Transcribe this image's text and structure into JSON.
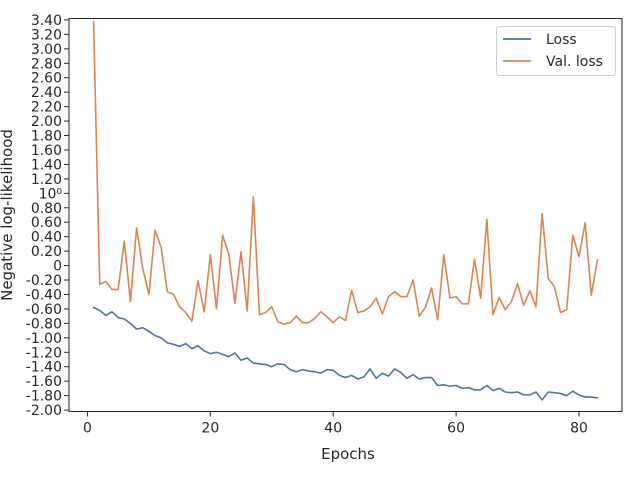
{
  "chart_data": {
    "type": "line",
    "title": "",
    "xlabel": "Epochs",
    "ylabel": "Negative log-likelihood",
    "xlim": [
      -3,
      87
    ],
    "ylim": [
      -2.02,
      3.42
    ],
    "x_ticks": [
      0,
      20,
      40,
      60,
      80
    ],
    "x_tick_labels": [
      "0",
      "20",
      "40",
      "60",
      "80"
    ],
    "y_ticks": [
      -2.0,
      -1.8,
      -1.6,
      -1.4,
      -1.2,
      -1.0,
      -0.8,
      -0.6,
      -0.4,
      -0.2,
      0,
      0.2,
      0.4,
      0.6,
      0.8,
      1.0,
      1.2,
      1.4,
      1.6,
      1.8,
      2.0,
      2.2,
      2.4,
      2.6,
      2.8,
      3.0,
      3.2,
      3.4
    ],
    "y_tick_labels": [
      "-2.00",
      "-1.80",
      "-1.60",
      "-1.40",
      "-1.20",
      "-1.00",
      "-0.80",
      "-0.60",
      "-0.40",
      "-0.20",
      "0",
      "0.20",
      "0.40",
      "0.60",
      "0.80",
      "10⁰",
      "1.20",
      "1.40",
      "1.60",
      "1.80",
      "2.00",
      "2.20",
      "2.40",
      "2.60",
      "2.80",
      "3.00",
      "3.20",
      "3.40"
    ],
    "legend": "top-right",
    "grid": false,
    "x": [
      1,
      2,
      3,
      4,
      5,
      6,
      7,
      8,
      9,
      10,
      11,
      12,
      13,
      14,
      15,
      16,
      17,
      18,
      19,
      20,
      21,
      22,
      23,
      24,
      25,
      26,
      27,
      28,
      29,
      30,
      31,
      32,
      33,
      34,
      35,
      36,
      37,
      38,
      39,
      40,
      41,
      42,
      43,
      44,
      45,
      46,
      47,
      48,
      49,
      50,
      51,
      52,
      53,
      54,
      55,
      56,
      57,
      58,
      59,
      60,
      61,
      62,
      63,
      64,
      65,
      66,
      67,
      68,
      69,
      70,
      71,
      72,
      73,
      74,
      75,
      76,
      77,
      78,
      79,
      80,
      81,
      82,
      83
    ],
    "series": [
      {
        "name": "Loss",
        "color": "#4c72b0",
        "values": [
          -0.58,
          -0.62,
          -0.69,
          -0.64,
          -0.72,
          -0.74,
          -0.8,
          -0.88,
          -0.86,
          -0.91,
          -0.97,
          -1.0,
          -1.07,
          -1.09,
          -1.12,
          -1.08,
          -1.15,
          -1.11,
          -1.18,
          -1.22,
          -1.2,
          -1.23,
          -1.26,
          -1.21,
          -1.31,
          -1.28,
          -1.35,
          -1.36,
          -1.37,
          -1.4,
          -1.36,
          -1.37,
          -1.44,
          -1.47,
          -1.44,
          -1.46,
          -1.47,
          -1.49,
          -1.44,
          -1.45,
          -1.52,
          -1.55,
          -1.52,
          -1.57,
          -1.54,
          -1.43,
          -1.56,
          -1.49,
          -1.53,
          -1.43,
          -1.48,
          -1.56,
          -1.51,
          -1.57,
          -1.55,
          -1.55,
          -1.66,
          -1.65,
          -1.67,
          -1.66,
          -1.7,
          -1.69,
          -1.72,
          -1.72,
          -1.66,
          -1.73,
          -1.7,
          -1.75,
          -1.76,
          -1.75,
          -1.79,
          -1.79,
          -1.75,
          -1.86,
          -1.75,
          -1.76,
          -1.77,
          -1.8,
          -1.74,
          -1.79,
          -1.82,
          -1.82,
          -1.83
        ]
      },
      {
        "name": "Val. loss",
        "color": "#dd8452",
        "values": [
          3.38,
          -0.26,
          -0.22,
          -0.33,
          -0.33,
          0.34,
          -0.5,
          0.52,
          -0.04,
          -0.4,
          0.49,
          0.25,
          -0.36,
          -0.4,
          -0.57,
          -0.65,
          -0.77,
          -0.21,
          -0.64,
          0.15,
          -0.6,
          0.42,
          0.16,
          -0.52,
          0.19,
          -0.63,
          0.95,
          -0.68,
          -0.65,
          -0.57,
          -0.78,
          -0.81,
          -0.79,
          -0.7,
          -0.79,
          -0.79,
          -0.73,
          -0.64,
          -0.71,
          -0.79,
          -0.71,
          -0.76,
          -0.34,
          -0.65,
          -0.63,
          -0.57,
          -0.45,
          -0.67,
          -0.43,
          -0.36,
          -0.43,
          -0.43,
          -0.2,
          -0.7,
          -0.58,
          -0.31,
          -0.75,
          0.15,
          -0.45,
          -0.43,
          -0.53,
          -0.53,
          0.09,
          -0.45,
          0.64,
          -0.68,
          -0.44,
          -0.61,
          -0.5,
          -0.25,
          -0.55,
          -0.35,
          -0.57,
          0.72,
          -0.18,
          -0.29,
          -0.65,
          -0.61,
          0.42,
          0.12,
          0.59,
          -0.41,
          0.08
        ]
      }
    ]
  }
}
